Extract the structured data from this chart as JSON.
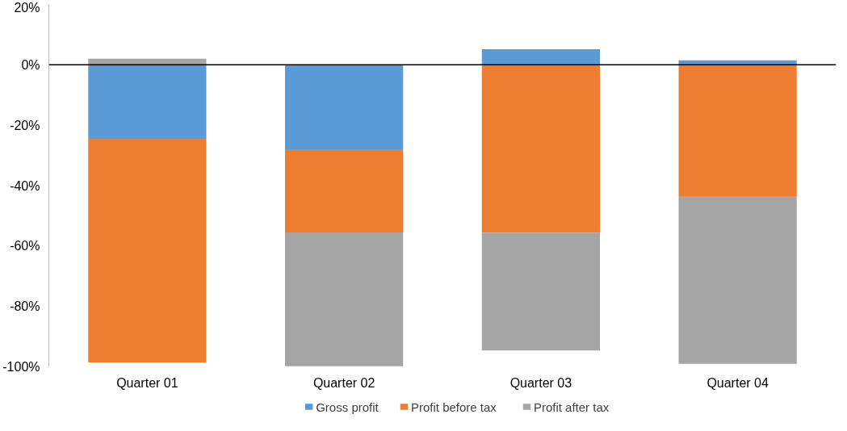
{
  "chart_data": {
    "type": "bar",
    "stacked": true,
    "categories": [
      "Quarter 01",
      "Quarter 02",
      "Quarter 03",
      "Quarter 04"
    ],
    "series": [
      {
        "name": "Gross profit",
        "color": "#5b9bd5",
        "values": [
          -24.5,
          -28,
          5.2,
          1.5
        ]
      },
      {
        "name": "Profit before tax",
        "color": "#ed7d31",
        "values": [
          -74,
          -27.5,
          -55.6,
          -43.5
        ]
      },
      {
        "name": "Profit after tax",
        "color": "#a5a5a5",
        "values": [
          2,
          -44.3,
          -39,
          -55.5
        ]
      }
    ],
    "ylim": [
      -100,
      20
    ],
    "yticks": [
      {
        "value": -100,
        "label": "-100%"
      },
      {
        "value": -80,
        "label": "-80%"
      },
      {
        "value": -60,
        "label": "-60%"
      },
      {
        "value": -40,
        "label": "-40%"
      },
      {
        "value": -20,
        "label": "-20%"
      },
      {
        "value": 0,
        "label": "0%"
      },
      {
        "value": 20,
        "label": "20%"
      }
    ],
    "ref_lines": [
      {
        "axis": "y",
        "value": 0,
        "color": "#000000"
      }
    ],
    "grid": false,
    "legend": "bottom"
  }
}
